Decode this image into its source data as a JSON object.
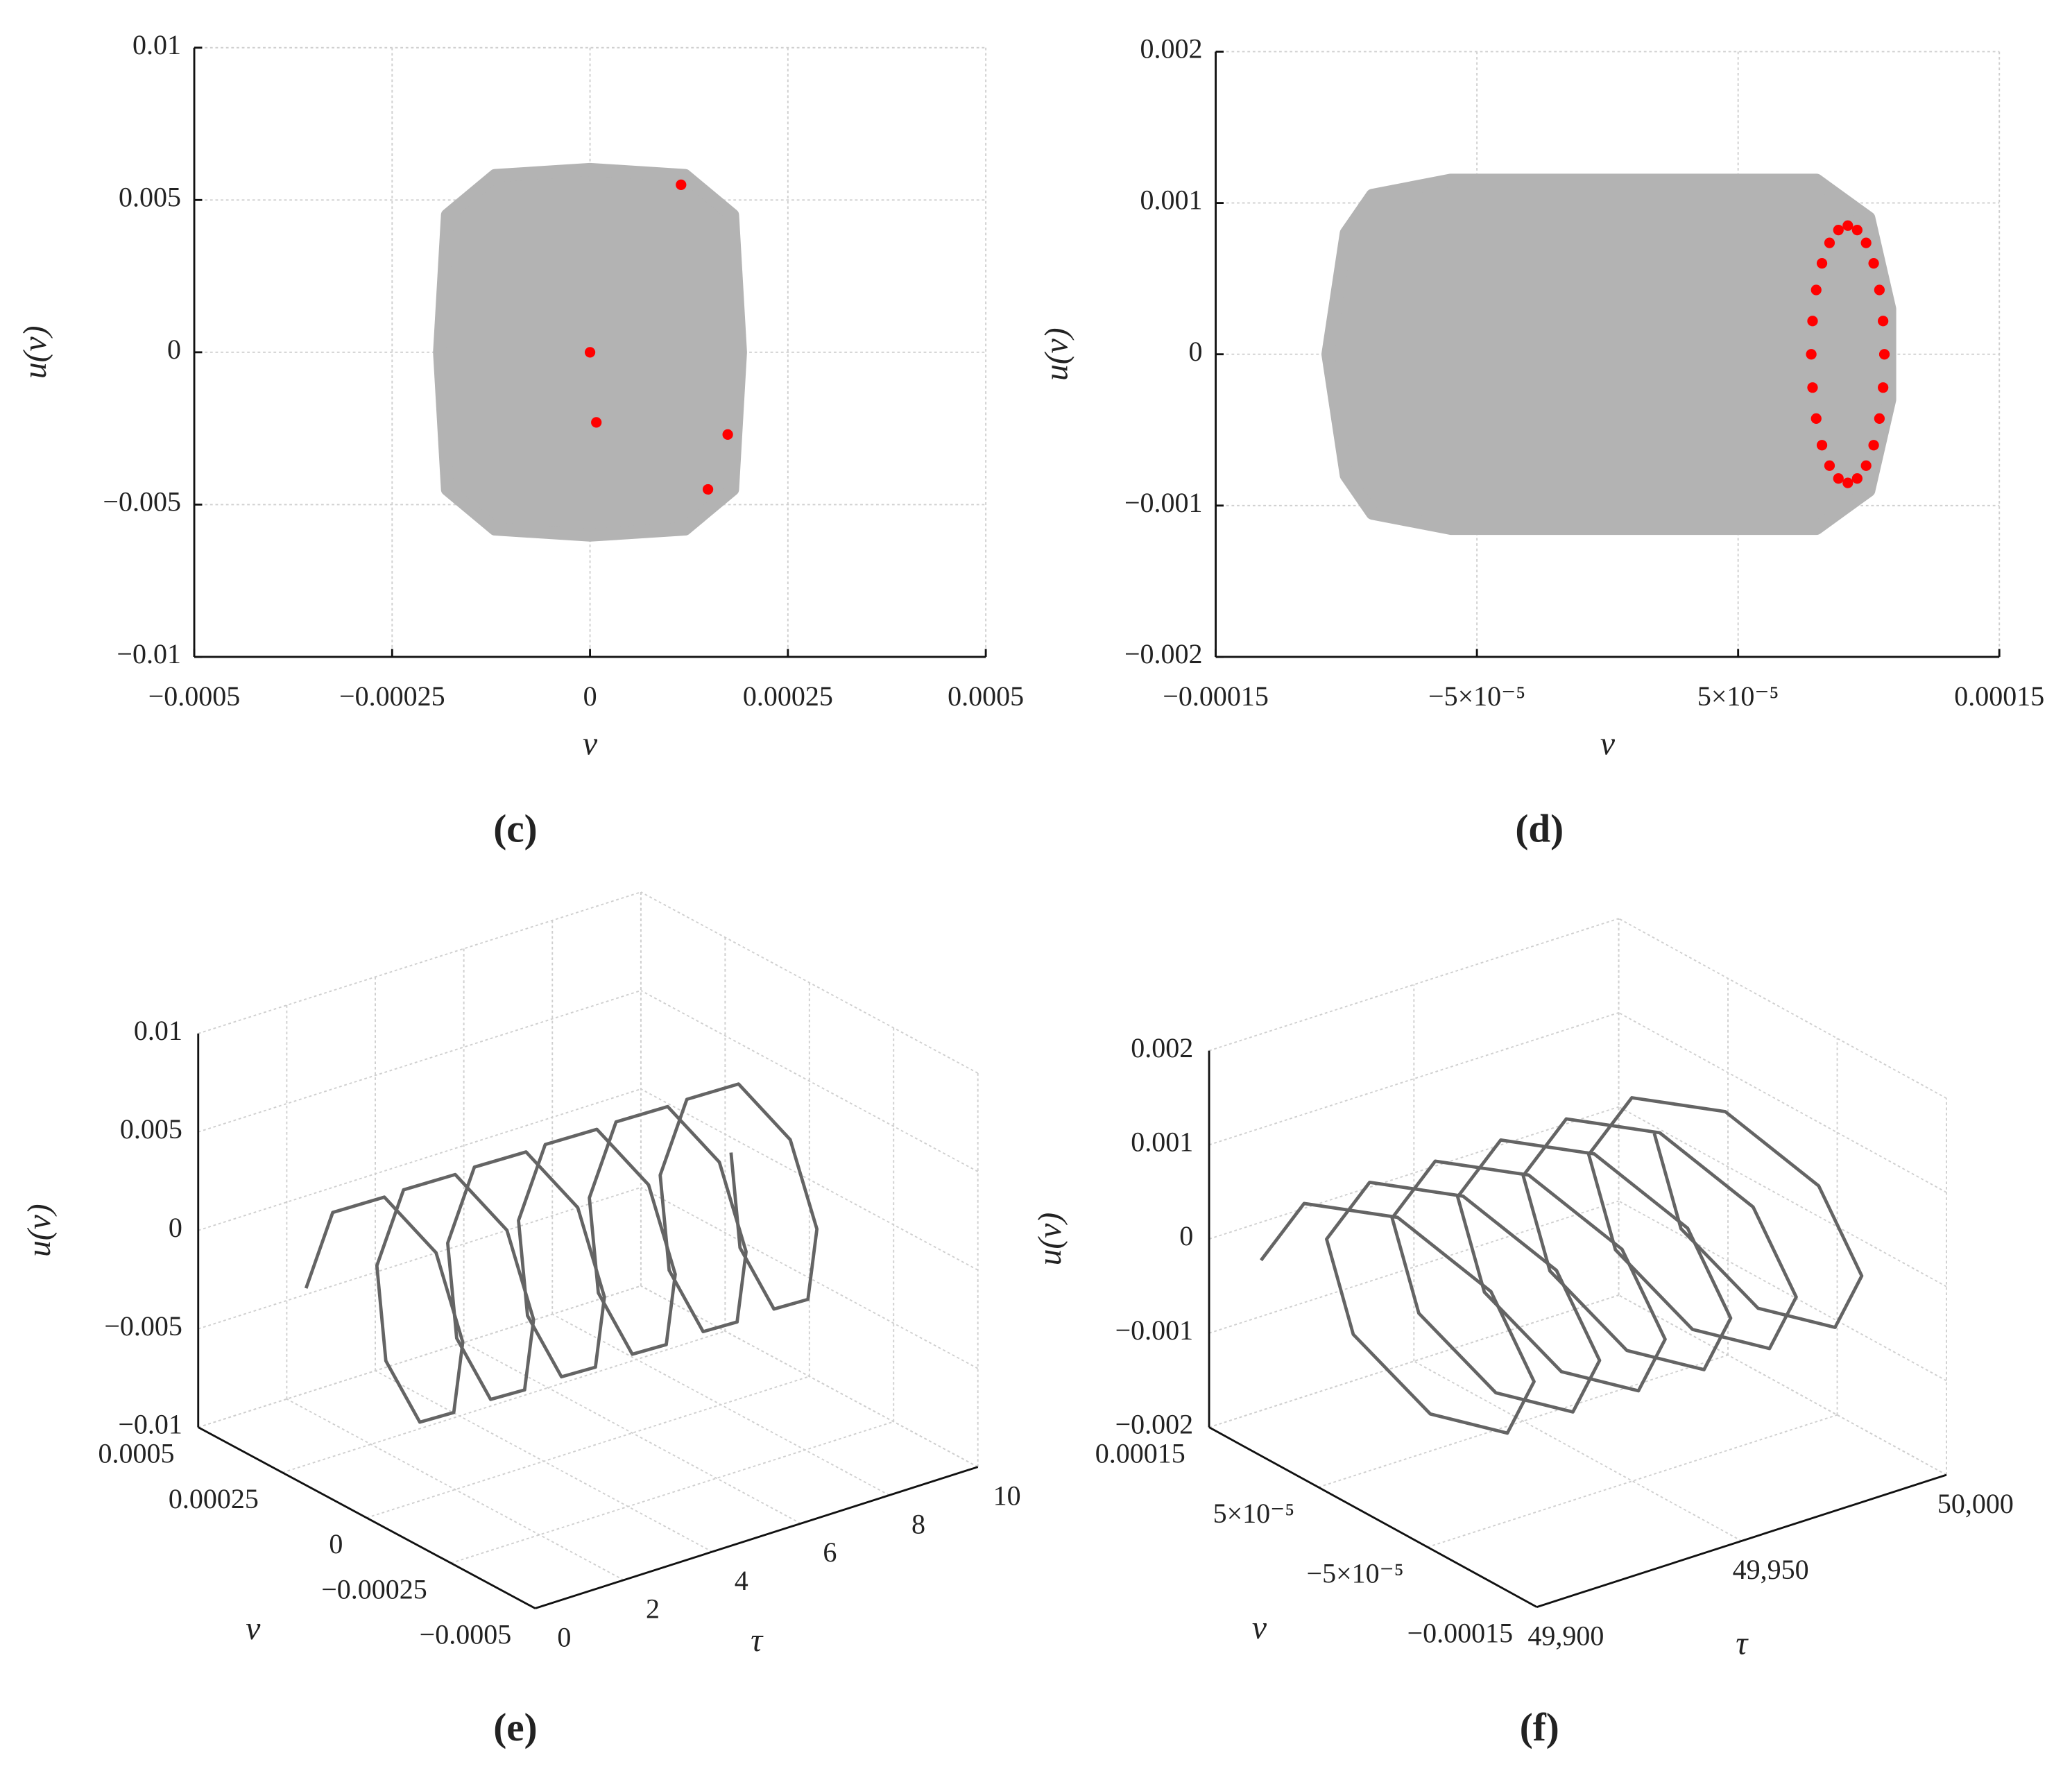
{
  "chart_data": [
    {
      "type": "scatter",
      "label": "(c)",
      "xlabel": "v",
      "ylabel": "u(v)",
      "xlim": [
        -0.0005,
        0.0005
      ],
      "ylim": [
        -0.01,
        0.01
      ],
      "grid": true,
      "xticks": [
        {
          "value": -0.0005,
          "label": "−0.0005"
        },
        {
          "value": -0.00025,
          "label": "−0.00025"
        },
        0,
        0.00025,
        0.0005
      ],
      "yticks": [
        0.01,
        0.005,
        0,
        {
          "value": -0.005,
          "label": "−0.005"
        },
        {
          "value": -0.01,
          "label": "−0.01"
        }
      ],
      "series": [
        {
          "color": "#b3b3b3",
          "marker": "area",
          "x": [
            -0.00018,
            -0.00012,
            0,
            0.00012,
            0.00018,
            0.00019,
            0.00018,
            0.00012,
            0,
            -0.00012,
            -0.00018,
            -0.00019
          ],
          "y": [
            0.0045,
            0.0058,
            0.006,
            0.0058,
            0.0045,
            0,
            -0.0045,
            -0.0058,
            -0.006,
            -0.0058,
            -0.0045,
            0
          ]
        },
        {
          "color": "#ff0000",
          "marker": "dot",
          "x": [
            0.000115,
            0,
            8e-06,
            0.000174,
            0.000149
          ],
          "y": [
            0.0055,
            0,
            -0.0023,
            -0.0027,
            -0.0045
          ]
        }
      ]
    },
    {
      "type": "scatter",
      "label": "(d)",
      "xlabel": "v",
      "ylabel": "u(v)",
      "xlim": [
        -0.00015,
        0.00015
      ],
      "ylim": [
        -0.002,
        0.002
      ],
      "grid": true,
      "xticks": [
        {
          "value": -0.00015,
          "label": "−0.00015"
        },
        {
          "value": -5e-05,
          "label": "−5×10⁻⁵"
        },
        {
          "value": 5e-05,
          "label": "5×10⁻⁵"
        },
        0.00015
      ],
      "yticks": [
        0.002,
        0.001,
        0,
        {
          "value": -0.001,
          "label": "−0.001"
        },
        {
          "value": -0.002,
          "label": "−0.002"
        }
      ],
      "series": [
        {
          "color": "#b3b3b3",
          "marker": "area",
          "x": [
            -0.0001,
            -9e-05,
            -6e-05,
            8e-05,
            0.0001,
            0.000108,
            0.000108,
            0.0001,
            8e-05,
            -6e-05,
            -9e-05,
            -0.0001,
            -0.000107
          ],
          "y": [
            0.0008,
            0.00105,
            0.00115,
            0.00115,
            0.0009,
            0.0003,
            -0.0003,
            -0.0009,
            -0.00115,
            -0.00115,
            -0.00105,
            -0.0008,
            0
          ]
        },
        {
          "color": "#ff0000",
          "marker": "dot",
          "x": [
            0.000106,
            0.0001055,
            0.0001041,
            0.0001019,
            9.9e-05,
            9.56e-05,
            9.2e-05,
            8.84e-05,
            8.5e-05,
            8.21e-05,
            7.99e-05,
            7.85e-05,
            7.8e-05,
            7.85e-05,
            7.99e-05,
            8.21e-05,
            8.5e-05,
            8.84e-05,
            9.2e-05,
            9.56e-05,
            9.9e-05,
            0.0001019,
            0.0001041,
            0.0001055
          ],
          "y": [
            0,
            0.00022,
            0.000425,
            0.000601,
            0.000736,
            0.000821,
            0.00085,
            0.000821,
            0.000736,
            0.000601,
            0.000425,
            0.00022,
            0,
            -0.00022,
            -0.000425,
            -0.000601,
            -0.000736,
            -0.000821,
            -0.00085,
            -0.000821,
            -0.000736,
            -0.000601,
            -0.000425,
            -0.00022
          ]
        }
      ]
    },
    {
      "type": "line3d",
      "label": "(e)",
      "xlabel": "τ",
      "ylabel": "v",
      "zlabel": "u(v)",
      "grid": true,
      "xlim": [
        0,
        10
      ],
      "ylim": [
        -0.0005,
        0.0005
      ],
      "zlim": [
        -0.01,
        0.01
      ],
      "xticks": [
        0,
        2,
        4,
        6,
        8,
        10
      ],
      "yticks": [
        {
          "value": -0.0005,
          "label": "−0.0005"
        },
        {
          "value": -0.00025,
          "label": "−0.00025"
        },
        0,
        0.00025,
        0.0005
      ],
      "zticks": [
        {
          "value": -0.01,
          "label": "−0.01"
        },
        {
          "value": -0.005,
          "label": "−0.005"
        },
        0,
        0.005,
        0.01
      ],
      "series": [
        {
          "color": "#646464",
          "x": [
            0,
            0.2,
            0.4,
            0.6,
            0.8,
            1,
            1.2,
            1.4,
            1.6,
            1.8,
            2,
            2.2,
            2.4,
            2.6,
            2.8,
            3,
            3.2,
            3.4,
            3.6,
            3.8,
            4,
            4.2,
            4.4,
            4.6,
            4.8,
            5,
            5.2,
            5.4,
            5.6,
            5.8,
            6,
            6.2,
            6.4,
            6.6,
            6.8,
            7,
            7.2,
            7.4,
            7.6,
            7.8,
            8,
            8.2,
            8.4,
            8.6,
            8.8,
            9,
            9.2,
            9.4,
            9.6
          ],
          "y": [
            0.00018,
            0.000127,
            0,
            -0.000127,
            -0.00018,
            -0.000127,
            0,
            0.000127,
            0.00018,
            0.000127,
            0,
            -0.000127,
            -0.00018,
            -0.000127,
            0,
            0.000127,
            0.00018,
            0.000127,
            0,
            -0.000127,
            -0.00018,
            -0.000127,
            0,
            0.000127,
            0.00018,
            0.000127,
            0,
            -0.000127,
            -0.00018,
            -0.000127,
            0,
            0.000127,
            0.00018,
            0.000127,
            0,
            -0.000127,
            -0.00018,
            -0.000127,
            0,
            0.000127,
            0.00018,
            0.000127,
            0,
            -0.000127,
            -0.00018,
            -0.000127,
            0,
            0.000127,
            0.00018
          ],
          "z": [
            0,
            0.0042,
            0.006,
            0.0042,
            0,
            -0.0042,
            -0.006,
            -0.0042,
            0,
            0.0042,
            0.006,
            0.0042,
            0,
            -0.0042,
            -0.006,
            -0.0042,
            0,
            0.0042,
            0.006,
            0.0042,
            0,
            -0.0042,
            -0.006,
            -0.0042,
            0,
            0.0042,
            0.006,
            0.0042,
            0,
            -0.0042,
            -0.006,
            -0.0042,
            0,
            0.0042,
            0.006,
            0.0042,
            0,
            -0.0042,
            -0.006,
            -0.0042,
            0,
            0.0042,
            0.006,
            0.0042,
            0,
            -0.0042,
            -0.006,
            -0.0042,
            0
          ]
        }
      ]
    },
    {
      "type": "line3d",
      "label": "(f)",
      "xlabel": "τ",
      "ylabel": "v",
      "zlabel": "u(v)",
      "grid": true,
      "xlim": [
        49900,
        50000
      ],
      "ylim": [
        -0.00015,
        0.00015
      ],
      "zlim": [
        -0.002,
        0.002
      ],
      "xticks": [
        {
          "value": 49900,
          "label": "49,900"
        },
        {
          "value": 49950,
          "label": "49,950"
        },
        {
          "value": 50000,
          "label": "50,000"
        }
      ],
      "yticks": [
        {
          "value": -0.00015,
          "label": "−0.00015"
        },
        {
          "value": -5e-05,
          "label": "−5×10⁻⁵"
        },
        {
          "value": 5e-05,
          "label": "5×10⁻⁵"
        },
        0.00015
      ],
      "zticks": [
        {
          "value": -0.002,
          "label": "−0.002"
        },
        {
          "value": -0.001,
          "label": "−0.001"
        },
        0,
        0.001,
        0.002
      ],
      "series": [
        {
          "color": "#646464",
          "x": [
            49902,
            49904,
            49906,
            49908,
            49910,
            49912,
            49914,
            49916,
            49918,
            49920,
            49922,
            49924,
            49926,
            49928,
            49930,
            49932,
            49934,
            49936,
            49938,
            49940,
            49942,
            49944,
            49946,
            49948,
            49950,
            49952,
            49954,
            49956,
            49958,
            49960,
            49962,
            49964,
            49966,
            49968,
            49970,
            49972,
            49974,
            49976,
            49978,
            49980,
            49982,
            49984,
            49986,
            49988,
            49990,
            49992,
            49994,
            49996,
            49998
          ],
          "y": [
            0.00011,
            7.8e-05,
            0,
            -7.8e-05,
            -0.00011,
            -7.8e-05,
            0,
            7.8e-05,
            0.00011,
            7.8e-05,
            0,
            -7.8e-05,
            -0.00011,
            -7.8e-05,
            0,
            7.8e-05,
            0.00011,
            7.8e-05,
            0,
            -7.8e-05,
            -0.00011,
            -7.8e-05,
            0,
            7.8e-05,
            0.00011,
            7.8e-05,
            0,
            -7.8e-05,
            -0.00011,
            -7.8e-05,
            0,
            7.8e-05,
            0.00011,
            7.8e-05,
            0,
            -7.8e-05,
            -0.00011,
            -7.8e-05,
            0,
            7.8e-05,
            0.00011,
            7.8e-05,
            0,
            -7.8e-05,
            -0.00011,
            -7.8e-05,
            0,
            7.8e-05,
            0.00011
          ],
          "z": [
            0,
            0.00078,
            0.0011,
            0.00078,
            0,
            -0.00078,
            -0.0011,
            -0.00078,
            0,
            0.00078,
            0.0011,
            0.00078,
            0,
            -0.00078,
            -0.0011,
            -0.00078,
            0,
            0.00078,
            0.0011,
            0.00078,
            0,
            -0.00078,
            -0.0011,
            -0.00078,
            0,
            0.00078,
            0.0011,
            0.00078,
            0,
            -0.00078,
            -0.0011,
            -0.00078,
            0,
            0.00078,
            0.0011,
            0.00078,
            0,
            -0.00078,
            -0.0011,
            -0.00078,
            0,
            0.00078,
            0.0011,
            0.00078,
            0,
            -0.00078,
            -0.0011,
            -0.00078,
            0
          ]
        }
      ]
    }
  ]
}
